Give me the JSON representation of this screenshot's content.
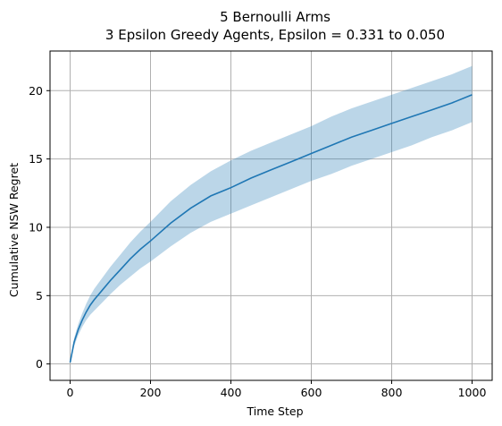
{
  "chart_data": {
    "type": "line",
    "title": "5 Bernoulli Arms",
    "subtitle": "3 Epsilon Greedy Agents, Epsilon = 0.331 to 0.050",
    "xlabel": "Time Step",
    "ylabel": "Cumulative NSW Regret",
    "xlim": [
      -50,
      1050
    ],
    "ylim": [
      -1.2,
      22.9
    ],
    "xticks": [
      0,
      200,
      400,
      600,
      800,
      1000
    ],
    "yticks": [
      0,
      5,
      10,
      15,
      20
    ],
    "grid": true,
    "legend": "none",
    "colors": {
      "line": "#1f77b4",
      "band": "#1f77b4",
      "band_opacity": 0.3
    },
    "series": [
      {
        "x": [
          0,
          10,
          20,
          30,
          40,
          50,
          60,
          80,
          100,
          125,
          150,
          175,
          200,
          250,
          300,
          350,
          400,
          450,
          500,
          550,
          600,
          650,
          700,
          750,
          800,
          850,
          900,
          950,
          1000
        ],
        "mean": [
          0.1,
          1.6,
          2.5,
          3.2,
          3.8,
          4.3,
          4.7,
          5.4,
          6.1,
          6.9,
          7.7,
          8.4,
          9.0,
          10.3,
          11.4,
          12.3,
          12.9,
          13.6,
          14.2,
          14.8,
          15.4,
          16.0,
          16.6,
          17.1,
          17.6,
          18.1,
          18.6,
          19.1,
          19.7
        ],
        "lower": [
          0.1,
          1.3,
          2.1,
          2.7,
          3.2,
          3.6,
          3.9,
          4.5,
          5.1,
          5.8,
          6.4,
          7.0,
          7.5,
          8.6,
          9.6,
          10.4,
          11.0,
          11.6,
          12.2,
          12.8,
          13.4,
          13.9,
          14.5,
          15.0,
          15.5,
          16.0,
          16.6,
          17.1,
          17.7
        ],
        "upper": [
          0.1,
          1.9,
          2.9,
          3.7,
          4.4,
          5.0,
          5.5,
          6.3,
          7.1,
          8.0,
          8.9,
          9.7,
          10.4,
          11.9,
          13.1,
          14.1,
          14.9,
          15.6,
          16.2,
          16.8,
          17.4,
          18.1,
          18.7,
          19.2,
          19.7,
          20.2,
          20.7,
          21.2,
          21.8
        ]
      }
    ]
  }
}
